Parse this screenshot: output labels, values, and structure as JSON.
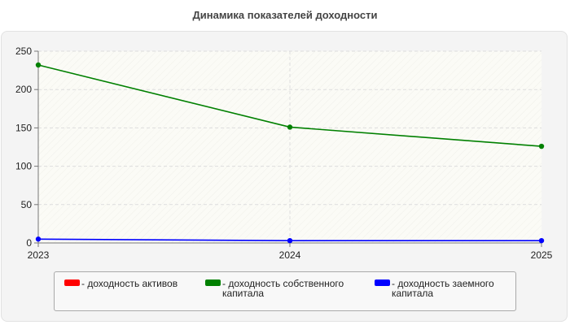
{
  "chart_data": {
    "type": "line",
    "title": "Динамика показателей доходности",
    "xlabel": "",
    "ylabel": "",
    "x": [
      "2023",
      "2024",
      "2025"
    ],
    "ylim": [
      0,
      250
    ],
    "yticks": [
      "0",
      "50",
      "100",
      "150",
      "200",
      "250"
    ],
    "grid": true,
    "legend_position": "bottom",
    "series": [
      {
        "name": "- доходность активов",
        "color": "#ff0000",
        "values": [
          null,
          null,
          null
        ]
      },
      {
        "name": "- доходность собственного капитала",
        "color": "#008000",
        "values": [
          232,
          151,
          126
        ]
      },
      {
        "name": "- доходность заемного капитала",
        "color": "#0000ff",
        "values": [
          5,
          3,
          3
        ]
      }
    ]
  }
}
